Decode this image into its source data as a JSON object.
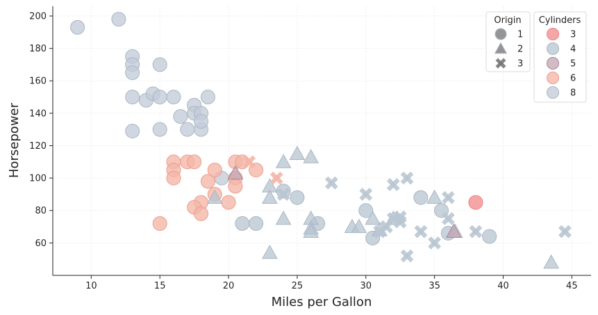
{
  "chart_data": {
    "type": "scatter",
    "xlabel": "Miles per Gallon",
    "ylabel": "Horsepower",
    "xlim": [
      7.2,
      46.4
    ],
    "ylim": [
      40,
      206
    ],
    "xticks": [
      10,
      15,
      20,
      25,
      30,
      35,
      40,
      45
    ],
    "yticks": [
      60,
      80,
      100,
      120,
      140,
      160,
      180,
      200
    ],
    "grid": true,
    "legends": {
      "origin": {
        "title": "Origin",
        "entries": [
          {
            "label": "1",
            "marker": "circle"
          },
          {
            "label": "2",
            "marker": "triangle"
          },
          {
            "label": "3",
            "marker": "x"
          }
        ]
      },
      "cylinders": {
        "title": "Cylinders",
        "entries": [
          {
            "label": "3",
            "color": "#f28e8e"
          },
          {
            "label": "4",
            "color": "#b9c6d2"
          },
          {
            "label": "5",
            "color": "#c4a8b4"
          },
          {
            "label": "6",
            "color": "#f4b6a8"
          },
          {
            "label": "8",
            "color": "#c3ccd8"
          }
        ]
      }
    },
    "series": [
      {
        "origin": "1",
        "cylinders": "8",
        "points": [
          [
            9,
            193
          ],
          [
            12,
            198
          ],
          [
            13,
            175
          ],
          [
            13,
            170
          ],
          [
            13,
            165
          ],
          [
            13,
            150
          ],
          [
            13,
            129
          ],
          [
            14,
            148
          ],
          [
            14.5,
            152
          ],
          [
            15,
            170
          ],
          [
            15,
            150
          ],
          [
            15,
            130
          ],
          [
            16,
            150
          ],
          [
            16.5,
            138
          ],
          [
            17,
            130
          ],
          [
            17.5,
            145
          ],
          [
            17.5,
            140
          ],
          [
            18,
            140
          ],
          [
            18,
            130
          ],
          [
            18,
            135
          ],
          [
            18.5,
            150
          ],
          [
            19.5,
            100
          ]
        ]
      },
      {
        "origin": "1",
        "cylinders": "6",
        "points": [
          [
            16,
            110
          ],
          [
            16,
            105
          ],
          [
            16,
            100
          ],
          [
            17,
            110
          ],
          [
            17.5,
            110
          ],
          [
            18,
            85
          ],
          [
            18.5,
            98
          ],
          [
            19,
            90
          ],
          [
            19,
            105
          ],
          [
            20,
            85
          ],
          [
            20.5,
            100
          ],
          [
            20.5,
            95
          ],
          [
            20.5,
            110
          ],
          [
            21,
            110
          ],
          [
            22,
            105
          ],
          [
            17.5,
            82
          ],
          [
            18,
            78
          ],
          [
            15,
            72
          ]
        ]
      },
      {
        "origin": "1",
        "cylinders": "4",
        "points": [
          [
            21,
            72
          ],
          [
            22,
            72
          ],
          [
            24,
            92
          ],
          [
            25,
            88
          ],
          [
            26.5,
            72
          ],
          [
            30,
            80
          ],
          [
            30.5,
            63
          ],
          [
            34,
            88
          ],
          [
            35.5,
            80
          ],
          [
            36,
            66
          ],
          [
            39,
            64
          ]
        ]
      },
      {
        "origin": "1",
        "cylinders": "3",
        "points": [
          [
            38,
            85
          ]
        ]
      },
      {
        "origin": "2",
        "cylinders": "4",
        "points": [
          [
            19,
            88
          ],
          [
            23,
            95
          ],
          [
            23,
            88
          ],
          [
            23,
            54
          ],
          [
            24,
            110
          ],
          [
            24,
            75
          ],
          [
            25,
            115
          ],
          [
            26,
            113
          ],
          [
            26,
            75
          ],
          [
            26,
            69
          ],
          [
            26,
            67
          ],
          [
            29,
            70
          ],
          [
            29.5,
            70
          ],
          [
            30.5,
            75
          ],
          [
            31,
            68
          ],
          [
            32,
            75
          ],
          [
            35,
            88
          ],
          [
            36.5,
            67
          ],
          [
            43.5,
            48
          ]
        ]
      },
      {
        "origin": "2",
        "cylinders": "5",
        "points": [
          [
            20.5,
            103
          ],
          [
            36.4,
            67
          ]
        ]
      },
      {
        "origin": "3",
        "cylinders": "4",
        "points": [
          [
            24,
            90
          ],
          [
            27.5,
            97
          ],
          [
            30,
            90
          ],
          [
            31,
            67
          ],
          [
            32,
            96
          ],
          [
            32,
            75
          ],
          [
            32.5,
            76
          ],
          [
            33,
            100
          ],
          [
            33,
            52
          ],
          [
            34,
            67
          ],
          [
            35,
            60
          ],
          [
            36,
            88
          ],
          [
            36,
            75
          ],
          [
            38,
            67
          ],
          [
            44.5,
            67
          ],
          [
            31.5,
            70
          ],
          [
            32.5,
            73
          ]
        ]
      },
      {
        "origin": "3",
        "cylinders": "6",
        "points": [
          [
            21.5,
            110
          ],
          [
            23.5,
            100
          ]
        ]
      }
    ]
  }
}
